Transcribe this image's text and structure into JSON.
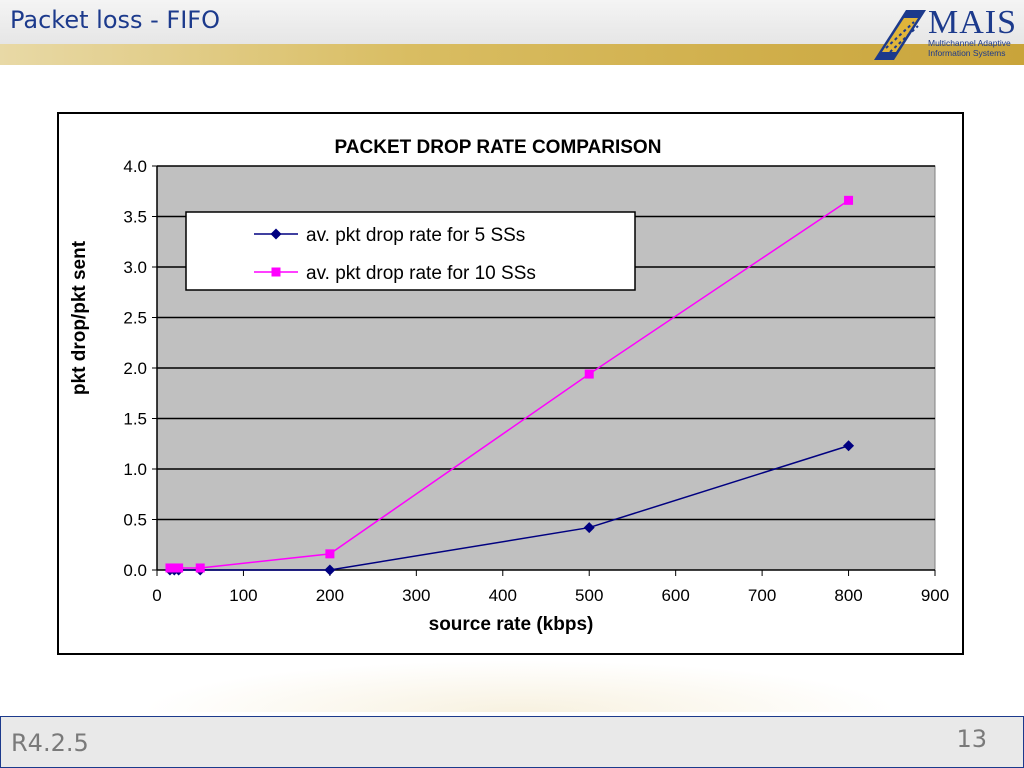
{
  "slide": {
    "title": "Packet loss - FIFO",
    "footer_left": "R4.2.5",
    "page_number": "13"
  },
  "logo": {
    "name": "MAIS",
    "subtitle_line1": "Multichannel Adaptive",
    "subtitle_line2": "Information Systems"
  },
  "colors": {
    "title": "#1c3a8c",
    "plot_bg": "#c0c0c0",
    "series1": "#000080",
    "series2": "#ff00ff"
  },
  "chart_data": {
    "type": "line",
    "title": "PACKET DROP RATE COMPARISON",
    "xlabel": "source rate (kbps)",
    "ylabel": "pkt drop/pkt sent",
    "xlim": [
      0,
      900
    ],
    "ylim": [
      0,
      4.0
    ],
    "x_ticks": [
      "0",
      "100",
      "200",
      "300",
      "400",
      "500",
      "600",
      "700",
      "800",
      "900"
    ],
    "y_ticks": [
      "0.0",
      "0.5",
      "1.0",
      "1.5",
      "2.0",
      "2.5",
      "3.0",
      "3.5",
      "4.0"
    ],
    "grid": "horizontal",
    "legend_position": "top-left",
    "series": [
      {
        "name": "av. pkt drop rate for 5 SSs",
        "marker": "diamond",
        "x": [
          15,
          20,
          25,
          50,
          200,
          500,
          800
        ],
        "y": [
          0.0,
          0.0,
          0.0,
          0.0,
          0.0,
          0.42,
          1.23
        ]
      },
      {
        "name": "av. pkt drop rate for 10 SSs",
        "marker": "square",
        "x": [
          15,
          20,
          25,
          50,
          200,
          500,
          800
        ],
        "y": [
          0.02,
          0.02,
          0.02,
          0.02,
          0.16,
          1.94,
          3.66
        ]
      }
    ]
  }
}
